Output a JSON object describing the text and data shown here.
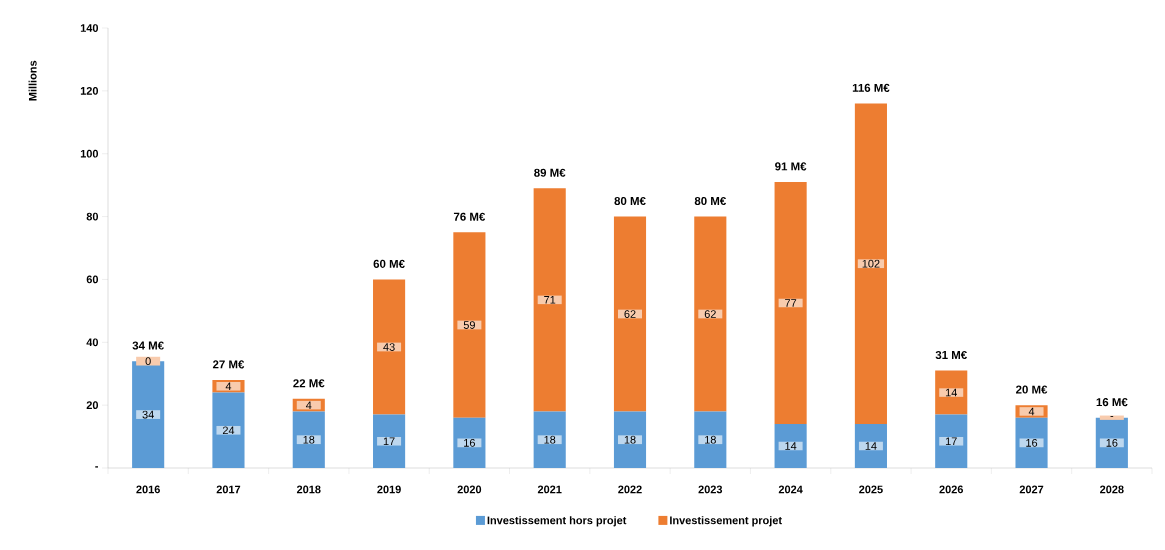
{
  "chart_data": {
    "type": "bar",
    "stacked": true,
    "ylabel": "Millions",
    "categories": [
      "2016",
      "2017",
      "2018",
      "2019",
      "2020",
      "2021",
      "2022",
      "2023",
      "2024",
      "2025",
      "2026",
      "2027",
      "2028"
    ],
    "series": [
      {
        "name": "Investissement hors projet",
        "color": "#5b9bd5",
        "values": [
          34,
          24,
          18,
          17,
          16,
          18,
          18,
          18,
          14,
          14,
          17,
          16,
          16
        ],
        "value_labels": [
          "34",
          "24",
          "18",
          "17",
          "16",
          "18",
          "18",
          "18",
          "14",
          "14",
          "17",
          "16",
          "16"
        ]
      },
      {
        "name": "Investissement projet",
        "color": "#ed7d31",
        "values": [
          0,
          4,
          4,
          43,
          59,
          71,
          62,
          62,
          77,
          102,
          14,
          4,
          0
        ],
        "value_labels": [
          "0",
          "4",
          "4",
          "43",
          "59",
          "71",
          "62",
          "62",
          "77",
          "102",
          "14",
          "4",
          "-"
        ]
      }
    ],
    "totals": [
      "34 M€",
      "27 M€",
      "22 M€",
      "60 M€",
      "76 M€",
      "89 M€",
      "80 M€",
      "80 M€",
      "91 M€",
      "116 M€",
      "31 M€",
      "20 M€",
      "16 M€"
    ],
    "ylim": [
      0,
      140
    ],
    "yticks": [
      {
        "value": 0,
        "label": "-"
      },
      20,
      40,
      60,
      80,
      100,
      120,
      140
    ],
    "grid": false,
    "legend": "bottom"
  }
}
